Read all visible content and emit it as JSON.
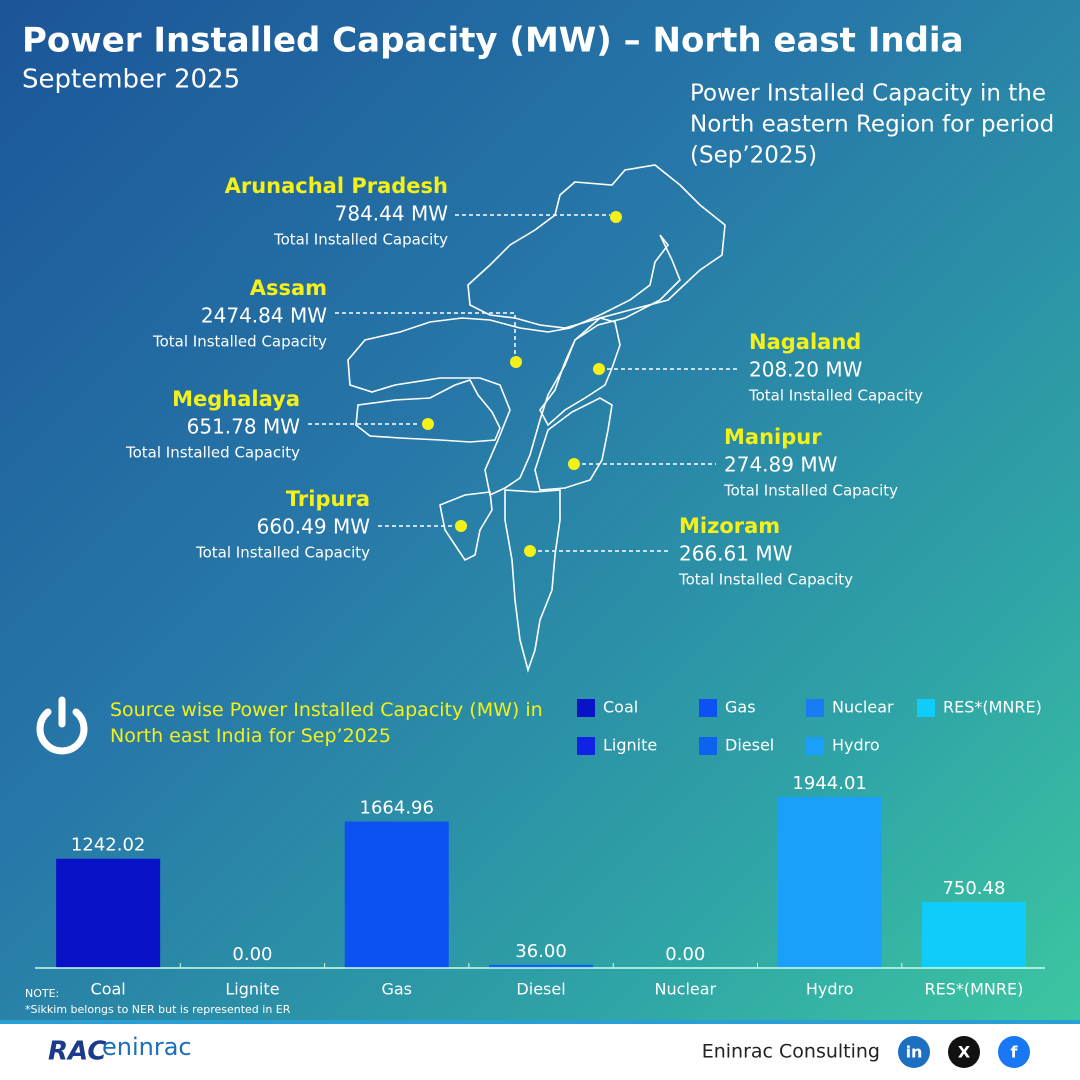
{
  "header": {
    "title": "Power Installed Capacity (MW) – North east India",
    "subtitle": "September 2025"
  },
  "map": {
    "caption": [
      "Power Installed Capacity in the",
      "North eastern Region for period",
      "(Sep’2025)"
    ],
    "states": [
      {
        "name": "Arunachal Pradesh",
        "capacity": "784.44 MW",
        "note": "Total Installed Capacity"
      },
      {
        "name": "Assam",
        "capacity": "2474.84 MW",
        "note": "Total Installed Capacity"
      },
      {
        "name": "Meghalaya",
        "capacity": "651.78 MW",
        "note": "Total Installed Capacity"
      },
      {
        "name": "Tripura",
        "capacity": "660.49 MW",
        "note": "Total Installed Capacity"
      },
      {
        "name": "Nagaland",
        "capacity": "208.20 MW",
        "note": "Total Installed Capacity"
      },
      {
        "name": "Manipur",
        "capacity": "274.89 MW",
        "note": "Total Installed Capacity"
      },
      {
        "name": "Mizoram",
        "capacity": "266.61 MW",
        "note": "Total Installed Capacity"
      }
    ]
  },
  "chart_data": {
    "type": "bar",
    "title": "Source wise Power Installed Capacity (MW) in North east India for Sep’2025",
    "categories": [
      "Coal",
      "Lignite",
      "Gas",
      "Diesel",
      "Nuclear",
      "Hydro",
      "RES*(MNRE)"
    ],
    "values": [
      1242.02,
      0,
      1664.96,
      36,
      0,
      1944.01,
      750.48
    ],
    "value_labels": [
      "1242.02",
      "0.00",
      "1664.96",
      "36.00",
      "0.00",
      "1944.01",
      "750.48"
    ],
    "colors": [
      "#0a12c8",
      "#0f22e6",
      "#0c52f2",
      "#0e62f0",
      "#1a7cf5",
      "#1aa0fa",
      "#10ccfa"
    ]
  },
  "notes": {
    "label": "NOTE:",
    "text": "*Sikkim belongs to NER but is represented in ER"
  },
  "footer": {
    "logo_mark": "RAC",
    "logo_text": "eninrac",
    "company": "Eninrac Consulting",
    "social": [
      "in",
      "X",
      "f"
    ]
  }
}
